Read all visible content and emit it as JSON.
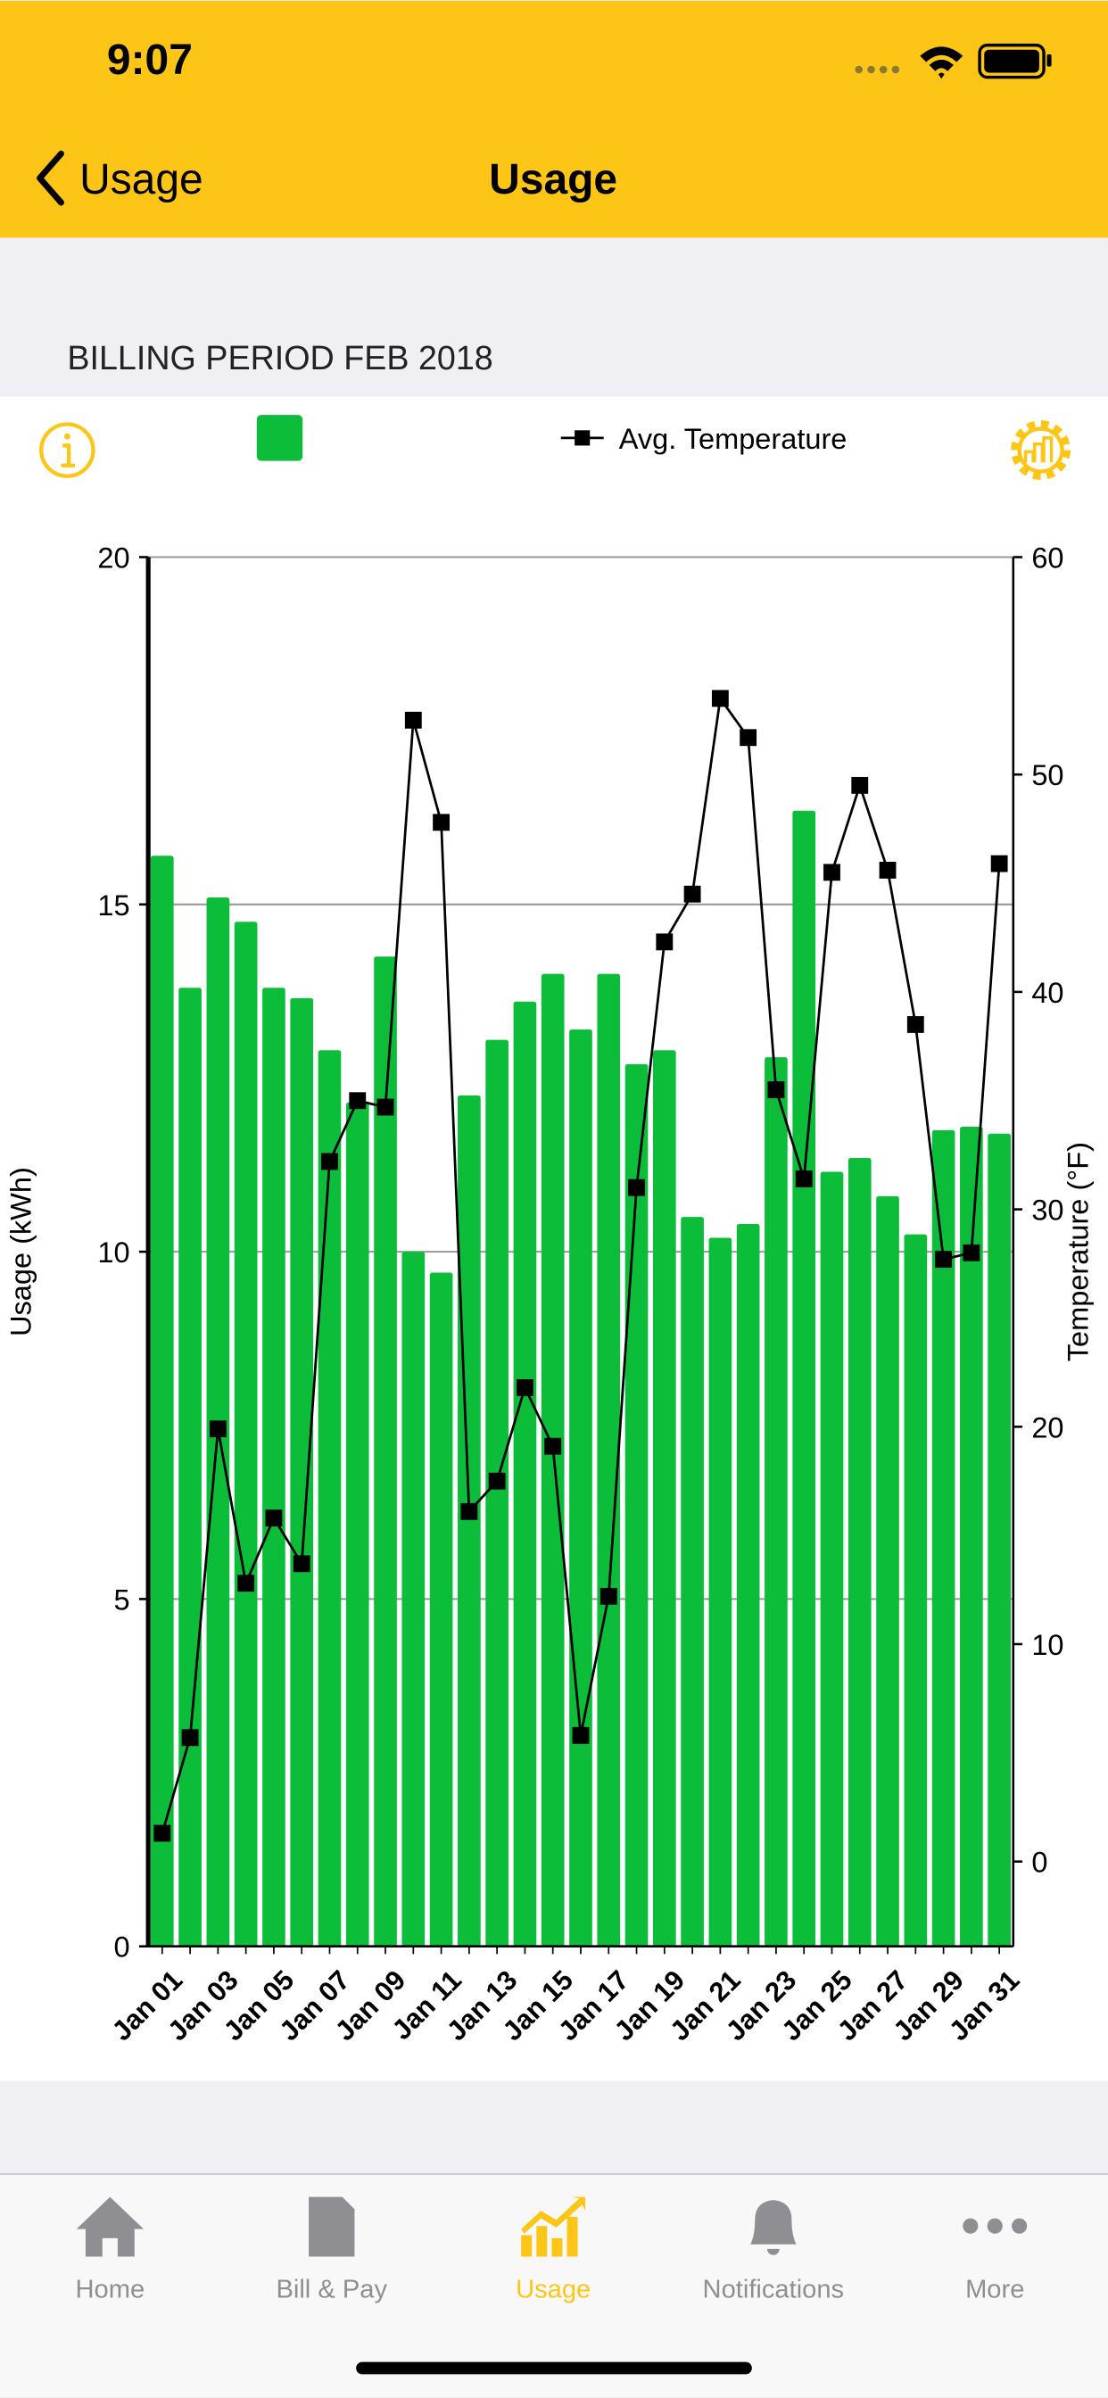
{
  "status_bar": {
    "time": "9:07"
  },
  "nav": {
    "back": "Usage",
    "title": "Usage"
  },
  "section_header": "BILLING PERIOD FEB 2018",
  "chart_data": {
    "type": "bar",
    "categories": [
      "Jan 01",
      null,
      "Jan 03",
      null,
      "Jan 05",
      null,
      "Jan 07",
      null,
      "Jan 09",
      null,
      "Jan 11",
      null,
      "Jan 13",
      null,
      "Jan 15",
      null,
      "Jan 17",
      null,
      "Jan 19",
      null,
      "Jan 21",
      null,
      "Jan 23",
      null,
      "Jan 25",
      null,
      "Jan 27",
      null,
      "Jan 29",
      null,
      "Jan 31"
    ],
    "series": [
      {
        "color": "#0cbd3a",
        "values": [
          15.7,
          13.8,
          15.1,
          14.75,
          13.8,
          13.65,
          12.9,
          12.15,
          14.25,
          10.0,
          9.7,
          12.25,
          13.05,
          13.6,
          14.0,
          13.2,
          14.0,
          12.7,
          12.9,
          10.5,
          10.2,
          10.4,
          12.8,
          16.35,
          11.15,
          11.35,
          10.8,
          10.25,
          11.75,
          11.8,
          11.7
        ]
      },
      {
        "name": "Avg. Temperature",
        "type": "line",
        "axis": "y2",
        "color": "#000000",
        "values": [
          1.3,
          5.7,
          19.9,
          12.8,
          15.8,
          13.7,
          32.2,
          35.0,
          34.7,
          52.5,
          47.8,
          16.1,
          17.5,
          21.8,
          19.1,
          5.8,
          12.2,
          31.0,
          42.3,
          44.5,
          53.5,
          51.7,
          35.5,
          31.4,
          45.5,
          49.5,
          45.6,
          38.5,
          27.7,
          28.0,
          45.9
        ]
      }
    ],
    "y_label": "Usage (kWh)",
    "y2_label": "Temperature (°F)",
    "ylim": [
      0,
      20
    ],
    "yticks": [
      0,
      5,
      10,
      15,
      20
    ],
    "y2lim": [
      -3.9,
      60
    ],
    "y2ticks": [
      0,
      10,
      20,
      30,
      40,
      50,
      60
    ],
    "grid": true
  },
  "tab_bar": {
    "items": [
      "Home",
      "Bill & Pay",
      "Usage",
      "Notifications",
      "More"
    ],
    "active": 2
  }
}
